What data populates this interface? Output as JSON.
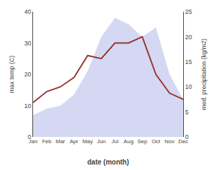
{
  "chart_data": {
    "type": "line",
    "x_label": "date (month)",
    "y_label": "max temp (C)",
    "y2_label": "med. precipitation (kg/m2)",
    "categories": [
      "Jan",
      "Feb",
      "Mar",
      "Apr",
      "May",
      "Jun",
      "Jul",
      "Aug",
      "Sep",
      "Oct",
      "Nov",
      "Dec"
    ],
    "series": [
      {
        "type": "area",
        "color": "#b0b8e8",
        "values": [
          7,
          9,
          10,
          13.5,
          21,
          32,
          38,
          36,
          32,
          35,
          20,
          12
        ]
      },
      {
        "type": "line",
        "color": "#993333",
        "values": [
          11,
          14.5,
          16,
          19,
          26,
          25,
          30,
          30,
          32,
          20,
          14,
          12
        ]
      }
    ],
    "ylim": [
      0,
      40
    ],
    "yticks": [
      0,
      10,
      20,
      30,
      40
    ],
    "y2lim": [
      0,
      25
    ],
    "y2ticks": [
      0,
      5,
      10,
      15,
      20,
      25
    ],
    "grid": false
  }
}
